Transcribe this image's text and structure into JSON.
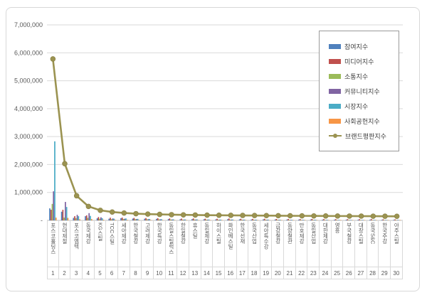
{
  "chart_data": {
    "type": "bar",
    "subtype": "grouped-bars-with-line-overlay",
    "title": "",
    "xlabel": "",
    "ylabel": "",
    "grid": true,
    "legend_position": "right-top",
    "y_axis": {
      "min": 0,
      "max": 7000000,
      "tick_interval": 1000000,
      "tick_labels": [
        "-",
        "1,000,000",
        "2,000,000",
        "3,000,000",
        "4,000,000",
        "5,000,000",
        "6,000,000",
        "7,000,000"
      ]
    },
    "categories": [
      "포스코홀딩스",
      "현대제철",
      "포스코엠텍",
      "동국제강",
      "KG스틸",
      "TCC스틸",
      "세아제강",
      "한국철강",
      "고려제강",
      "한국특강",
      "동일스틸럭스",
      "한일철강",
      "휴스틸",
      "동일제강",
      "하이스틸",
      "화인베스틸",
      "한국선재",
      "동국산업",
      "세아특수강",
      "금강철강",
      "동양철관",
      "만호제강",
      "동일산업",
      "대한제강",
      "영흥",
      "부국철강",
      "대창스틸",
      "동국S&C",
      "한국주강",
      "아주스틸"
    ],
    "ranks": [
      "1",
      "2",
      "3",
      "4",
      "5",
      "6",
      "7",
      "8",
      "9",
      "10",
      "11",
      "12",
      "13",
      "14",
      "15",
      "16",
      "17",
      "18",
      "19",
      "20",
      "21",
      "22",
      "23",
      "24",
      "25",
      "26",
      "27",
      "28",
      "29",
      "30"
    ],
    "series": [
      {
        "name": "참여지수",
        "type": "bar",
        "color": "#4F81BD",
        "values": [
          430000,
          310000,
          90000,
          150000,
          75000,
          60000,
          80000,
          65000,
          60000,
          55000,
          45000,
          40000,
          45000,
          38000,
          35000,
          42000,
          36000,
          32000,
          36000,
          30000,
          30000,
          28000,
          30000,
          27000,
          25000,
          24000,
          24000,
          26000,
          21000,
          20000
        ]
      },
      {
        "name": "미디어지수",
        "type": "bar",
        "color": "#C0504D",
        "values": [
          380000,
          380000,
          150000,
          180000,
          120000,
          95000,
          100000,
          88000,
          84000,
          80000,
          70000,
          64000,
          70000,
          60000,
          58000,
          68000,
          58000,
          54000,
          58000,
          52000,
          52000,
          48000,
          52000,
          47000,
          44000,
          43000,
          43000,
          47000,
          38000,
          36000
        ]
      },
      {
        "name": "소통지수",
        "type": "bar",
        "color": "#9BBB59",
        "values": [
          590000,
          100000,
          80000,
          90000,
          60000,
          45000,
          50000,
          44000,
          40000,
          37000,
          30000,
          27000,
          30000,
          26000,
          25000,
          28000,
          24000,
          22000,
          24000,
          21000,
          20000,
          19000,
          20000,
          18000,
          17000,
          16000,
          16000,
          17000,
          13000,
          12000
        ]
      },
      {
        "name": "커뮤니티지수",
        "type": "bar",
        "color": "#8064A2",
        "values": [
          1040000,
          660000,
          200000,
          260000,
          110000,
          70000,
          60000,
          50000,
          45000,
          40000,
          34000,
          30000,
          32000,
          28000,
          26000,
          30000,
          26000,
          23000,
          25000,
          22000,
          20000,
          18000,
          20000,
          18000,
          16000,
          15000,
          15000,
          16000,
          12000,
          11000
        ]
      },
      {
        "name": "시장지수",
        "type": "bar",
        "color": "#4BACC6",
        "values": [
          2830000,
          480000,
          150000,
          160000,
          80000,
          60000,
          70000,
          55000,
          50000,
          45000,
          38000,
          33000,
          36000,
          31000,
          28000,
          33000,
          28000,
          25000,
          28000,
          24000,
          22000,
          20000,
          22000,
          20000,
          18000,
          17000,
          17000,
          18000,
          14000,
          13000
        ]
      },
      {
        "name": "사회공헌지수",
        "type": "bar",
        "color": "#F79646",
        "values": [
          100000,
          90000,
          40000,
          50000,
          25000,
          20000,
          22000,
          18000,
          16000,
          15000,
          12000,
          11000,
          12000,
          10000,
          9000,
          11000,
          9000,
          8000,
          9000,
          8000,
          7000,
          7000,
          7000,
          6000,
          6000,
          5000,
          5000,
          6000,
          4000,
          4000
        ]
      },
      {
        "name": "브랜드평판지수",
        "type": "line",
        "color": "#9B9351",
        "values": [
          5780000,
          2030000,
          880000,
          500000,
          360000,
          300000,
          265000,
          240000,
          225000,
          215000,
          205000,
          198000,
          192000,
          187000,
          183000,
          180000,
          177000,
          174000,
          171000,
          168000,
          165000,
          162000,
          160000,
          158000,
          156000,
          154000,
          152000,
          150000,
          148000,
          146000
        ]
      }
    ]
  },
  "colors": {
    "grid": "#d9d9d9",
    "axis": "#bfbfbf",
    "tick_text": "#595959",
    "legend_border": "#9a9a9a",
    "frame_border": "#d8d8d8"
  }
}
